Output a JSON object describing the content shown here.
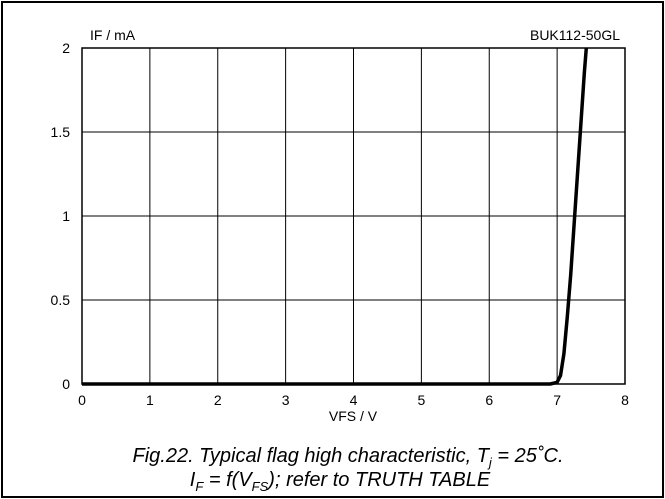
{
  "chart_data": {
    "type": "line",
    "tag": "BUK112-50GL",
    "xlabel": "VFS / V",
    "ylabel": "IF / mA",
    "xlim": [
      0,
      8
    ],
    "ylim": [
      0,
      2
    ],
    "x_ticks": [
      "0",
      "1",
      "2",
      "3",
      "4",
      "5",
      "6",
      "7",
      "8"
    ],
    "y_ticks": [
      "0",
      "0.5",
      "1",
      "1.5",
      "2"
    ],
    "grid": true,
    "series": [
      {
        "x": [
          0,
          1,
          2,
          3,
          4,
          5,
          6,
          6.9,
          7.0,
          7.05,
          7.1,
          7.15,
          7.2,
          7.25,
          7.3,
          7.35,
          7.4,
          7.43
        ],
        "y": [
          0,
          0,
          0,
          0,
          0,
          0,
          0,
          0,
          0.01,
          0.05,
          0.18,
          0.4,
          0.65,
          0.95,
          1.25,
          1.55,
          1.85,
          2.0
        ]
      }
    ],
    "caption": {
      "line1_prefix": "Fig.22.   Typical flag high characteristic, T",
      "line1_sub": "j",
      "line1_suffix": " = 25˚C.",
      "line2_a": "I",
      "line2_a_sub": "F",
      "line2_b": " = f(V",
      "line2_b_sub": "FS",
      "line2_c": "); refer to TRUTH TABLE"
    }
  }
}
